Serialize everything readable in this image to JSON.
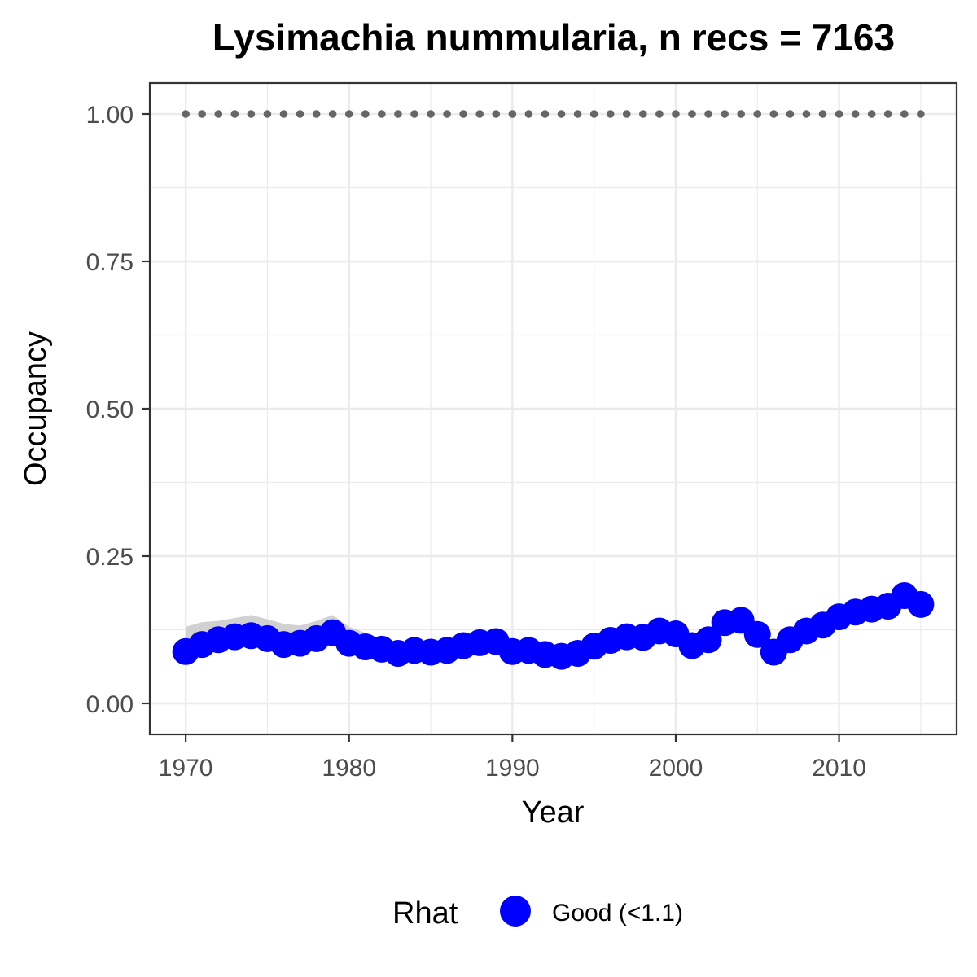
{
  "chart_data": {
    "type": "line",
    "title": "Lysimachia nummularia, n recs = 7163",
    "xlabel": "Year",
    "ylabel": "Occupancy",
    "xlim": [
      1967.8,
      2017.2
    ],
    "ylim": [
      -0.0525,
      1.0525
    ],
    "x_ticks": [
      1970,
      1980,
      1990,
      2000,
      2010
    ],
    "x_tick_labels": [
      "1970",
      "1980",
      "1990",
      "2000",
      "2010"
    ],
    "y_ticks": [
      0,
      0.25,
      0.5,
      0.75,
      1.0
    ],
    "y_tick_labels": [
      "0.00",
      "0.25",
      "0.50",
      "0.75",
      "1.00"
    ],
    "grid": true,
    "legend": {
      "title": "Rhat",
      "position": "bottom",
      "entries": [
        {
          "label": "Good (<1.1)",
          "color": "#0000ff"
        }
      ]
    },
    "colors": {
      "points": "#0000ff",
      "ribbon": "#cccccc",
      "reference_dots": "#666666",
      "grid": "#ebebeb",
      "panel_border": "#333333"
    },
    "x": [
      1970,
      1971,
      1972,
      1973,
      1974,
      1975,
      1976,
      1977,
      1978,
      1979,
      1980,
      1981,
      1982,
      1983,
      1984,
      1985,
      1986,
      1987,
      1988,
      1989,
      1990,
      1991,
      1992,
      1993,
      1994,
      1995,
      1996,
      1997,
      1998,
      1999,
      2000,
      2001,
      2002,
      2003,
      2004,
      2005,
      2006,
      2007,
      2008,
      2009,
      2010,
      2011,
      2012,
      2013,
      2014,
      2015
    ],
    "series": [
      {
        "values": [
          0.088,
          0.1,
          0.108,
          0.113,
          0.115,
          0.11,
          0.1,
          0.102,
          0.11,
          0.12,
          0.102,
          0.096,
          0.092,
          0.085,
          0.09,
          0.087,
          0.09,
          0.098,
          0.103,
          0.105,
          0.088,
          0.09,
          0.083,
          0.08,
          0.085,
          0.097,
          0.107,
          0.113,
          0.112,
          0.123,
          0.118,
          0.098,
          0.108,
          0.137,
          0.141,
          0.117,
          0.087,
          0.108,
          0.123,
          0.133,
          0.147,
          0.155,
          0.16,
          0.165,
          0.183,
          0.168
        ],
        "lower": [
          0.078,
          0.088,
          0.093,
          0.096,
          0.096,
          0.093,
          0.088,
          0.09,
          0.097,
          0.106,
          0.092,
          0.087,
          0.082,
          0.076,
          0.08,
          0.078,
          0.082,
          0.088,
          0.093,
          0.095,
          0.079,
          0.081,
          0.074,
          0.071,
          0.076,
          0.088,
          0.097,
          0.103,
          0.102,
          0.112,
          0.107,
          0.089,
          0.098,
          0.126,
          0.13,
          0.106,
          0.078,
          0.098,
          0.112,
          0.122,
          0.136,
          0.144,
          0.149,
          0.154,
          0.17,
          0.157
        ],
        "upper": [
          0.13,
          0.138,
          0.14,
          0.145,
          0.15,
          0.143,
          0.135,
          0.132,
          0.14,
          0.15,
          0.13,
          0.12,
          0.11,
          0.1,
          0.104,
          0.102,
          0.103,
          0.11,
          0.115,
          0.117,
          0.102,
          0.103,
          0.096,
          0.092,
          0.096,
          0.108,
          0.118,
          0.124,
          0.123,
          0.134,
          0.13,
          0.11,
          0.12,
          0.149,
          0.153,
          0.13,
          0.1,
          0.12,
          0.135,
          0.145,
          0.159,
          0.168,
          0.175,
          0.182,
          0.196,
          0.18
        ]
      }
    ],
    "reference_value": 1.0
  }
}
